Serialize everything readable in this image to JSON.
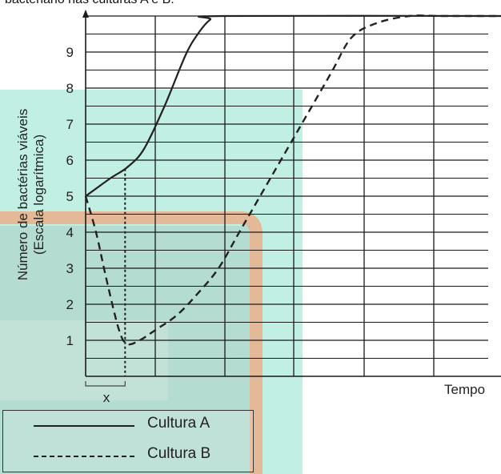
{
  "header": {
    "text_fragment": "bacteriano nas culturas A e B."
  },
  "chart_data": {
    "type": "line",
    "title": "",
    "ylabel_line1": "Número de bactérias viáveis",
    "ylabel_line2": "(Escala logarítmica)",
    "xlabel": "Tempo",
    "x_marker_label": "x",
    "xlim": [
      0,
      10
    ],
    "ylim": [
      0,
      10
    ],
    "y_ticks": [
      1,
      2,
      3,
      4,
      5,
      6,
      7,
      8,
      9
    ],
    "grid": true,
    "legend_position": "bottom-left",
    "series": [
      {
        "name": "Cultura A",
        "style": "solid",
        "x": [
          0,
          0.6,
          1.0,
          1.4,
          1.9,
          2.4,
          2.7,
          3.0,
          3.3,
          10.0
        ],
        "y": [
          5.0,
          5.5,
          5.8,
          6.3,
          7.5,
          8.9,
          9.5,
          9.9,
          10.0,
          10.0
        ]
      },
      {
        "name": "Cultura B",
        "style": "dashed",
        "x": [
          0,
          0.25,
          0.5,
          0.8,
          1.0,
          1.3,
          1.7,
          2.2,
          2.7,
          3.2,
          3.7,
          4.3,
          5.1,
          5.9,
          6.4,
          7.0,
          7.8,
          8.6,
          10.0
        ],
        "y": [
          5.0,
          4.0,
          2.7,
          1.3,
          0.9,
          1.0,
          1.3,
          1.7,
          2.3,
          3.0,
          4.0,
          5.2,
          6.8,
          8.4,
          9.4,
          9.8,
          10.0,
          10.0,
          10.0
        ]
      }
    ],
    "x_marker_value": 0.95
  },
  "colors": {
    "line": "#222222",
    "grid": "#1a1a1a",
    "watermark_teal": "#5fd6b8",
    "watermark_orange": "#f2a277"
  }
}
